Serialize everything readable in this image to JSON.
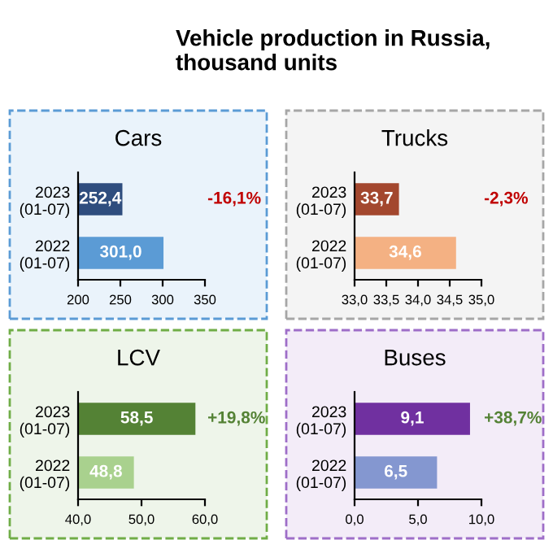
{
  "chart_data": [
    {
      "type": "other",
      "title": "Vehicle production in Russia,\nthousand units"
    },
    {
      "type": "bar",
      "orientation": "horizontal",
      "title": "Cars",
      "categories": [
        "2023\n(01-07)",
        "2022\n(01-07)"
      ],
      "values": [
        252.4,
        301.0
      ],
      "colors": [
        "#2f4d7e",
        "#5b9bd5"
      ],
      "value_labels": [
        "252,4",
        "301,0"
      ],
      "xlim": [
        200,
        350
      ],
      "xticks": [
        200,
        250,
        300,
        350
      ],
      "annotations": [
        "-16,1%"
      ]
    },
    {
      "type": "bar",
      "orientation": "horizontal",
      "title": "Trucks",
      "categories": [
        "2023\n(01-07)",
        "2022\n(01-07)"
      ],
      "values": [
        33.7,
        34.6
      ],
      "colors": [
        "#a3472e",
        "#f4b183"
      ],
      "value_labels": [
        "33,7",
        "34,6"
      ],
      "xlim": [
        33.0,
        35.0
      ],
      "xticks": [
        {
          "value": 33.0,
          "label": "33,0"
        },
        {
          "value": 33.5,
          "label": "33,5"
        },
        {
          "value": 34.0,
          "label": "34,0"
        },
        {
          "value": 34.5,
          "label": "34,5"
        },
        {
          "value": 35.0,
          "label": "35,0"
        }
      ],
      "annotations": [
        "-2,3%"
      ]
    },
    {
      "type": "bar",
      "orientation": "horizontal",
      "title": "LCV",
      "categories": [
        "2023\n(01-07)",
        "2022\n(01-07)"
      ],
      "values": [
        58.5,
        48.8
      ],
      "colors": [
        "#548235",
        "#a9d18e"
      ],
      "value_labels": [
        "58,5",
        "48,8"
      ],
      "xlim": [
        40.0,
        60.0
      ],
      "xticks": [
        {
          "value": 40.0,
          "label": "40,0"
        },
        {
          "value": 50.0,
          "label": "50,0"
        },
        {
          "value": 60.0,
          "label": "60,0"
        }
      ],
      "annotations": [
        "+19,8%"
      ]
    },
    {
      "type": "bar",
      "orientation": "horizontal",
      "title": "Buses",
      "categories": [
        "2023\n(01-07)",
        "2022\n(01-07)"
      ],
      "values": [
        9.1,
        6.5
      ],
      "colors": [
        "#7030a0",
        "#8497d0"
      ],
      "value_labels": [
        "9,1",
        "6,5"
      ],
      "xlim": [
        0.0,
        10.0
      ],
      "xticks": [
        {
          "value": 0.0,
          "label": "0,0"
        },
        {
          "value": 5.0,
          "label": "5,0"
        },
        {
          "value": 10.0,
          "label": "10,0"
        }
      ],
      "annotations": [
        "+38,7%"
      ]
    }
  ]
}
